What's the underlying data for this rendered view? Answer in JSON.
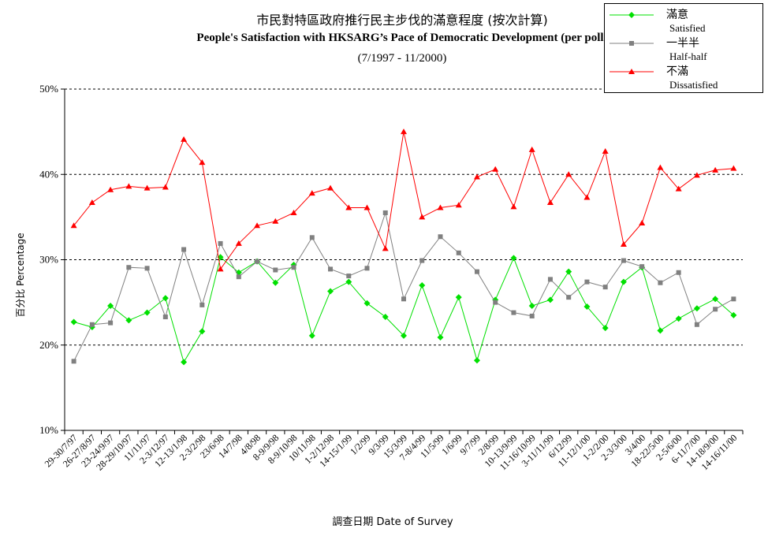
{
  "chart_data": {
    "type": "line",
    "title_zh": "市民對特區政府推行民主步伐的滿意程度 (按次計算)",
    "title_en": "People's Satisfaction with HKSARG’s Pace of Democratic Development  (per poll)",
    "subtitle": "(7/1997 - 11/2000)",
    "ylabel": "百分比 Percentage",
    "xlabel": "調查日期 Date of Survey",
    "ylim": [
      10,
      50
    ],
    "yticks": [
      "10%",
      "20%",
      "30%",
      "40%",
      "50%"
    ],
    "grid": "horizontal dashed",
    "legend_position": "top-right",
    "categories": [
      "29-30/7/97",
      "26-27/8/97",
      "23-24/9/97",
      "28-29/10/97",
      "11/11/97",
      "2-3/12/97",
      "12-13/1/98",
      "2-3/2/98",
      "23/6/98",
      "14/7/98",
      "4/8/98",
      "8-9/9/98",
      "8-9/10/98",
      "10/11/98",
      "1-2/12/98",
      "14-15/1/99",
      "1/2/99",
      "9/3/99",
      "15/3/99",
      "7-8/4/99",
      "11/5/99",
      "1/6/99",
      "9/7/99",
      "2/8/99",
      "10-13/9/99",
      "11-16/10/99",
      "3-11/11/99",
      "6/12/99",
      "11-12/1/00",
      "1-2/2/00",
      "2-3/3/00",
      "3/4/00",
      "18-22/5/00",
      "2-5/6/00",
      "6-11/7/00",
      "14-18/9/00",
      "14-16/11/00"
    ],
    "series": [
      {
        "name_zh": "滿意",
        "name": "Satisfied",
        "color": "#00e000",
        "marker": "diamond",
        "values": [
          22.7,
          22.1,
          24.6,
          22.9,
          23.8,
          25.5,
          18.0,
          21.6,
          30.3,
          28.5,
          29.8,
          27.3,
          29.4,
          21.1,
          26.3,
          27.4,
          24.9,
          23.3,
          21.1,
          27.0,
          20.9,
          25.6,
          18.2,
          25.3,
          30.2,
          24.6,
          25.3,
          28.6,
          24.5,
          22.0,
          27.4,
          29.1,
          21.7,
          23.1,
          24.3,
          25.4,
          23.5
        ]
      },
      {
        "name_zh": "一半半",
        "name": "Half-half",
        "color": "#808080",
        "marker": "square",
        "values": [
          18.1,
          22.4,
          22.6,
          29.1,
          29.0,
          23.3,
          31.2,
          24.7,
          31.9,
          28.0,
          29.8,
          28.8,
          29.1,
          32.6,
          28.9,
          28.1,
          29.0,
          35.5,
          25.4,
          29.9,
          32.7,
          30.8,
          28.6,
          25.0,
          23.8,
          23.4,
          27.7,
          25.6,
          27.4,
          26.8,
          29.9,
          29.2,
          27.3,
          28.5,
          22.4,
          24.2,
          25.4
        ]
      },
      {
        "name_zh": "不滿",
        "name": "Dissatisfied",
        "color": "#ff0000",
        "marker": "triangle",
        "values": [
          34.0,
          36.7,
          38.2,
          38.6,
          38.4,
          38.5,
          44.1,
          41.4,
          28.9,
          31.9,
          34.0,
          34.5,
          35.5,
          37.8,
          38.4,
          36.1,
          36.1,
          31.3,
          45.0,
          35.0,
          36.1,
          36.4,
          39.7,
          40.6,
          36.2,
          42.9,
          36.7,
          40.0,
          37.3,
          42.7,
          31.8,
          34.3,
          40.8,
          38.3,
          39.9,
          40.5,
          40.7
        ]
      }
    ]
  }
}
